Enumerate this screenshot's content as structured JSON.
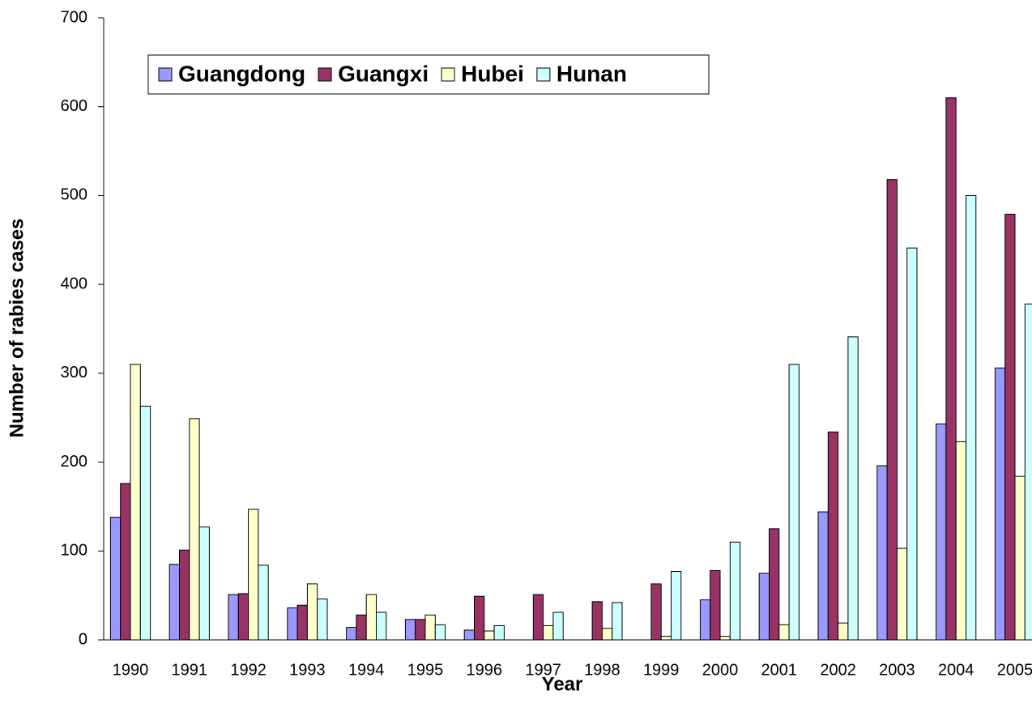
{
  "chart_data": {
    "type": "bar",
    "x_label": "Year",
    "y_label": "Number of rabies cases",
    "categories": [
      "1990",
      "1991",
      "1992",
      "1993",
      "1994",
      "1995",
      "1996",
      "1997",
      "1998",
      "1999",
      "2000",
      "2001",
      "2002",
      "2003",
      "2004",
      "2005"
    ],
    "series": [
      {
        "name": "Guangdong",
        "color": "#9999ff",
        "values": [
          138,
          85,
          51,
          36,
          14,
          23,
          11,
          0,
          0,
          0,
          45,
          75,
          144,
          196,
          243,
          306
        ]
      },
      {
        "name": "Guangxi",
        "color": "#993366",
        "values": [
          176,
          101,
          52,
          39,
          28,
          23,
          49,
          51,
          43,
          63,
          78,
          125,
          234,
          518,
          610,
          479
        ]
      },
      {
        "name": "Hubei",
        "color": "#ffffcc",
        "values": [
          310,
          249,
          147,
          63,
          51,
          28,
          10,
          16,
          13,
          4,
          4,
          17,
          19,
          103,
          223,
          184
        ]
      },
      {
        "name": "Hunan",
        "color": "#ccffff",
        "values": [
          263,
          127,
          84,
          46,
          31,
          17,
          16,
          31,
          42,
          77,
          110,
          310,
          341,
          441,
          500,
          378
        ]
      }
    ],
    "ylim": [
      0,
      700
    ],
    "yticks": [
      0,
      100,
      200,
      300,
      400,
      500,
      600,
      700
    ],
    "legend": "top-left"
  }
}
